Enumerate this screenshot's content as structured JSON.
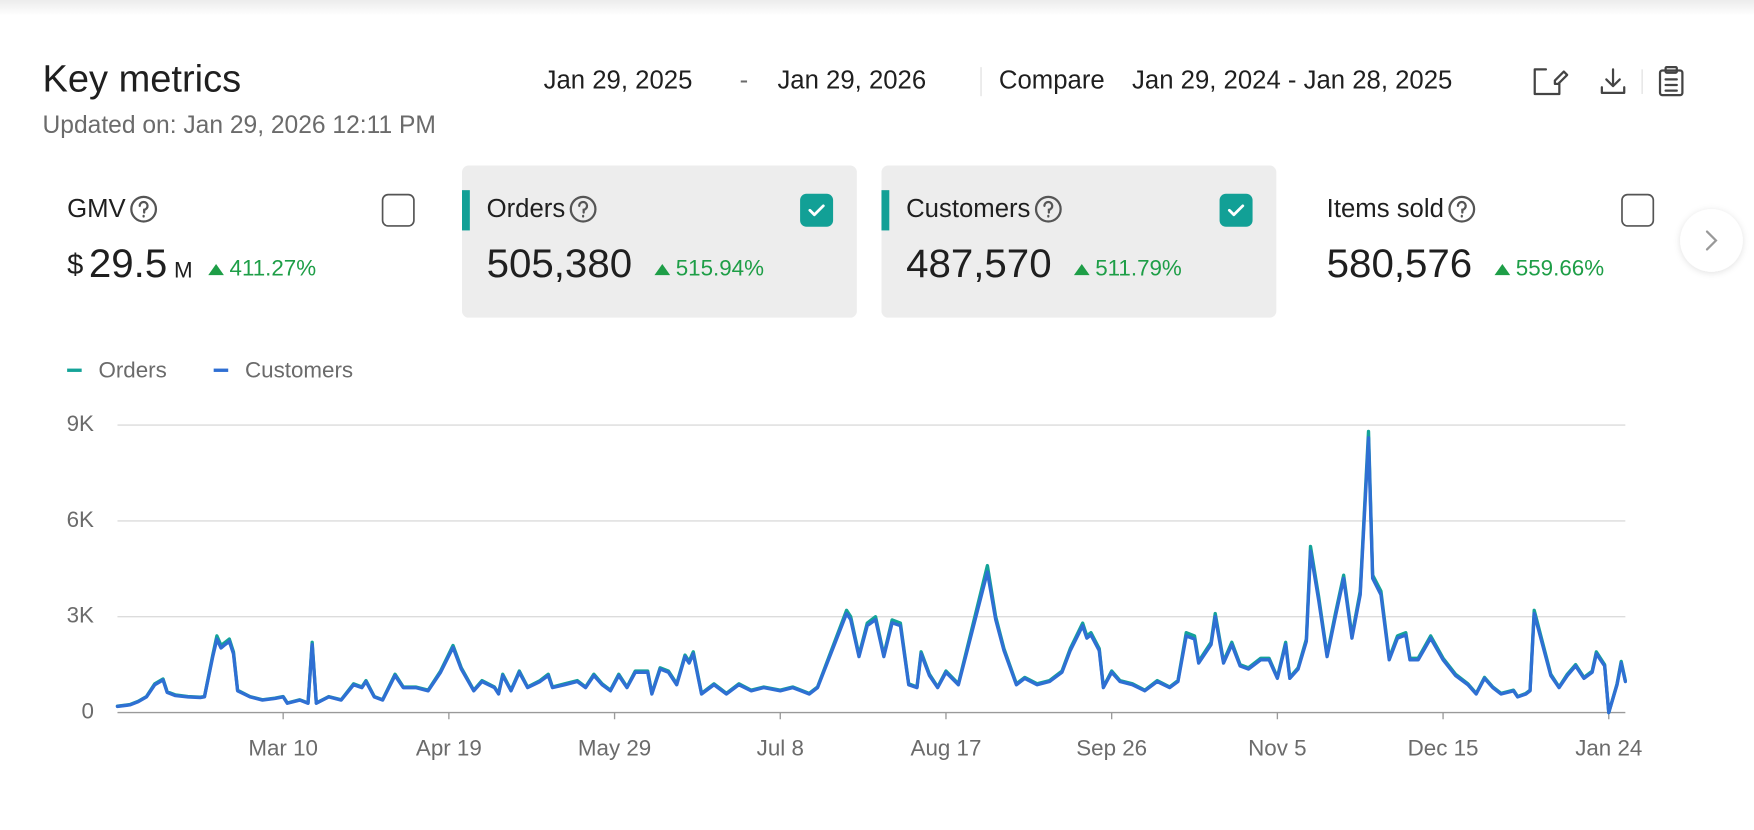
{
  "header": {
    "title": "Key metrics",
    "updated": "Updated on: Jan 29, 2026 12:11 PM",
    "date_start": "Jan 29, 2025",
    "date_separator": "-",
    "date_end": "Jan 29, 2026",
    "compare_label": "Compare",
    "compare_range": "Jan 29, 2024 - Jan 28, 2025"
  },
  "metrics": [
    {
      "name": "GMV",
      "prefix": "$",
      "value": "29.5",
      "unit": "M",
      "change": "411.27%",
      "checked": false
    },
    {
      "name": "Orders",
      "value": "505,380",
      "change": "515.94%",
      "checked": true
    },
    {
      "name": "Customers",
      "value": "487,570",
      "change": "511.79%",
      "checked": true
    },
    {
      "name": "Items sold",
      "value": "580,576",
      "change": "559.66%",
      "checked": false
    }
  ],
  "chart_data": {
    "type": "line",
    "x": [
      0,
      3,
      5,
      7,
      9,
      11,
      12,
      14,
      17,
      20,
      21,
      23,
      24,
      25,
      26,
      27,
      28,
      29,
      32,
      35,
      38,
      40,
      41,
      44,
      46,
      47,
      48,
      51,
      54,
      57,
      59,
      60,
      62,
      64,
      67,
      69,
      72,
      75,
      78,
      81,
      83,
      86,
      88,
      91,
      92,
      93,
      95,
      97,
      99,
      102,
      104,
      105,
      108,
      111,
      113,
      115,
      117,
      119,
      121,
      123,
      125,
      128,
      129,
      131,
      133,
      135,
      137,
      138,
      139,
      141,
      144,
      147,
      150,
      153,
      156,
      160,
      163,
      165,
      167,
      169,
      176,
      177,
      179,
      181,
      183,
      185,
      187,
      189,
      191,
      193,
      194,
      196,
      198,
      200,
      203,
      210,
      212,
      214,
      217,
      219,
      222,
      225,
      228,
      230,
      233,
      234,
      235,
      237,
      238,
      240,
      242,
      245,
      248,
      251,
      254,
      256,
      258,
      260,
      261,
      264,
      265,
      267,
      269,
      271,
      273,
      276,
      278,
      280,
      282,
      283,
      285,
      287,
      288,
      290,
      292,
      294,
      296,
      298,
      300,
      302,
      303,
      305,
      307,
      309,
      311,
      312,
      314,
      317,
      320,
      323,
      326,
      328,
      330,
      332,
      334,
      337,
      338,
      340,
      341,
      342,
      346,
      348,
      350,
      352,
      354,
      356,
      357,
      359,
      360,
      362,
      363,
      364
    ],
    "xlim": [
      0,
      364
    ],
    "xticks": [
      {
        "value": 40,
        "label": "Mar 10"
      },
      {
        "value": 80,
        "label": "Apr 19"
      },
      {
        "value": 120,
        "label": "May 29"
      },
      {
        "value": 160,
        "label": "Jul 8"
      },
      {
        "value": 200,
        "label": "Aug 17"
      },
      {
        "value": 240,
        "label": "Sep 26"
      },
      {
        "value": 280,
        "label": "Nov 5"
      },
      {
        "value": 320,
        "label": "Dec 15"
      },
      {
        "value": 360,
        "label": "Jan 24"
      }
    ],
    "ylim": [
      0,
      9000
    ],
    "yticks": [
      0,
      {
        "value": 3000,
        "label": "3K"
      },
      {
        "value": 6000,
        "label": "6K"
      },
      {
        "value": 9000,
        "label": "9K"
      }
    ],
    "grid": true,
    "series": [
      {
        "name": "Orders",
        "color": "#14a398",
        "values": [
          200,
          250,
          350,
          500,
          900,
          1050,
          650,
          550,
          500,
          480,
          500,
          1800,
          2400,
          2100,
          2200,
          2300,
          1900,
          700,
          500,
          400,
          450,
          500,
          300,
          400,
          300,
          2200,
          300,
          500,
          400,
          900,
          800,
          1000,
          500,
          400,
          1200,
          800,
          800,
          700,
          1300,
          2100,
          1400,
          700,
          1000,
          800,
          600,
          1200,
          700,
          1300,
          800,
          1000,
          1200,
          800,
          900,
          1000,
          800,
          1200,
          900,
          700,
          1200,
          800,
          1300,
          1300,
          600,
          1400,
          1300,
          900,
          1800,
          1600,
          1900,
          600,
          900,
          600,
          900,
          700,
          800,
          700,
          800,
          700,
          600,
          800,
          3200,
          3000,
          1800,
          2800,
          3000,
          1800,
          2900,
          2800,
          900,
          800,
          1900,
          1200,
          800,
          1300,
          900,
          4600,
          3000,
          2000,
          900,
          1100,
          900,
          1000,
          1300,
          2000,
          2800,
          2400,
          2500,
          2000,
          800,
          1300,
          1000,
          900,
          700,
          1000,
          800,
          1000,
          2500,
          2400,
          1600,
          2200,
          3100,
          1600,
          2200,
          1500,
          1400,
          1700,
          1700,
          1100,
          2200,
          1100,
          1400,
          2300,
          5200,
          3600,
          1800,
          3100,
          4300,
          2400,
          3800,
          8800,
          4300,
          3800,
          1700,
          2400,
          2500,
          1700,
          1700,
          2400,
          1700,
          1200,
          900,
          600,
          1100,
          800,
          600,
          700,
          500,
          600,
          700,
          3200,
          1200,
          800,
          1200,
          1500,
          1100,
          1300,
          1900,
          1500,
          0,
          900,
          1600,
          1000
        ]
      },
      {
        "name": "Customers",
        "color": "#2f6fd3",
        "values": [
          190,
          240,
          340,
          490,
          870,
          1020,
          630,
          530,
          490,
          470,
          490,
          1750,
          2300,
          2020,
          2130,
          2230,
          1840,
          680,
          490,
          390,
          440,
          490,
          290,
          390,
          290,
          2130,
          290,
          490,
          390,
          870,
          780,
          970,
          490,
          390,
          1160,
          780,
          780,
          680,
          1260,
          2040,
          1360,
          680,
          970,
          780,
          580,
          1160,
          680,
          1260,
          780,
          970,
          1160,
          780,
          870,
          970,
          780,
          1160,
          870,
          680,
          1160,
          780,
          1260,
          1260,
          580,
          1360,
          1260,
          870,
          1750,
          1550,
          1840,
          580,
          870,
          580,
          870,
          680,
          780,
          680,
          780,
          680,
          580,
          780,
          3100,
          2910,
          1750,
          2720,
          2910,
          1750,
          2810,
          2720,
          870,
          780,
          1840,
          1160,
          780,
          1260,
          870,
          4400,
          2910,
          1940,
          870,
          1070,
          870,
          970,
          1260,
          1940,
          2720,
          2330,
          2430,
          1940,
          780,
          1260,
          970,
          870,
          680,
          970,
          780,
          970,
          2400,
          2300,
          1550,
          2130,
          3000,
          1550,
          2130,
          1460,
          1360,
          1650,
          1650,
          1070,
          2130,
          1070,
          1360,
          2230,
          5050,
          3490,
          1750,
          3000,
          4200,
          2330,
          3690,
          8600,
          4200,
          3690,
          1650,
          2330,
          2430,
          1650,
          1650,
          2330,
          1650,
          1160,
          870,
          580,
          1070,
          780,
          580,
          680,
          490,
          580,
          680,
          3100,
          1160,
          780,
          1160,
          1460,
          1070,
          1260,
          1840,
          1460,
          0,
          870,
          1550,
          970
        ]
      }
    ]
  }
}
